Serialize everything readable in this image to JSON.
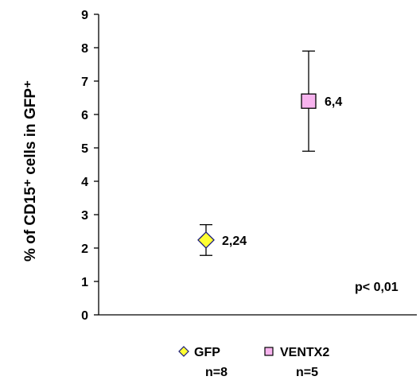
{
  "chart_data": {
    "type": "scatter",
    "ylabel": "% of CD15⁺ cells in GFP⁺",
    "ylim": [
      0,
      9
    ],
    "yticks": [
      "0",
      "1",
      "2",
      "3",
      "4",
      "5",
      "6",
      "7",
      "8",
      "9"
    ],
    "grid": false,
    "legend_position": "bottom",
    "annotation": "p< 0,01",
    "series": [
      {
        "name": "GFP",
        "n_label": "n=8",
        "x": 1,
        "y": 2.24,
        "label": "2,24",
        "err_low": 1.78,
        "err_high": 2.7,
        "marker": "diamond",
        "fill": "#ffff33",
        "stroke": "#1a1a7a"
      },
      {
        "name": "VENTX2",
        "n_label": "n=5",
        "x": 2,
        "y": 6.4,
        "label": "6,4",
        "err_low": 4.9,
        "err_high": 7.9,
        "marker": "square",
        "fill": "#f7b3ee",
        "stroke": "#000000"
      }
    ]
  }
}
